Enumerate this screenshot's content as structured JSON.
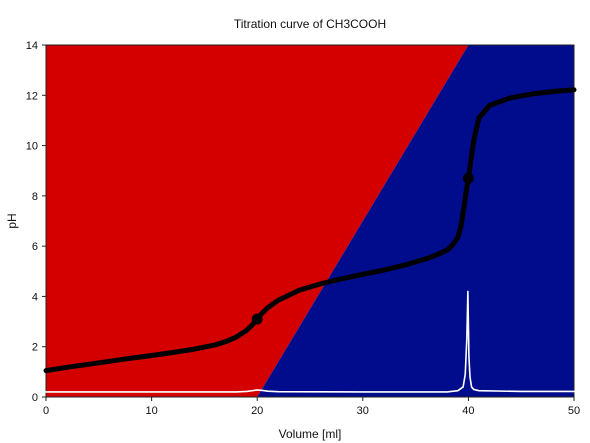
{
  "chart_data": {
    "type": "line",
    "title": "Titration curve of CH3COOH",
    "xlabel": "Volume [ml]",
    "ylabel": "pH",
    "xlim": [
      0,
      50
    ],
    "ylim": [
      0,
      14
    ],
    "xticks": [
      0,
      10,
      20,
      30,
      40,
      50
    ],
    "yticks": [
      0,
      2,
      4,
      6,
      8,
      10,
      12,
      14
    ],
    "grid": false,
    "legend": "none",
    "regions": {
      "boundary_line": [
        [
          20,
          0
        ],
        [
          40,
          14
        ]
      ],
      "left_color": "#d40000",
      "right_color": "#000c8c"
    },
    "series": [
      {
        "color": "#000000",
        "x": [
          0,
          2,
          4,
          6,
          8,
          10,
          12,
          14,
          16,
          17,
          18,
          19,
          19.5,
          20,
          20.5,
          21,
          22,
          24,
          26,
          28,
          30,
          32,
          34,
          36,
          37,
          38,
          38.5,
          39,
          39.3,
          39.6,
          39.8,
          40,
          40.2,
          40.5,
          41,
          42,
          44,
          46,
          48,
          50
        ],
        "y": [
          1.05,
          1.18,
          1.3,
          1.42,
          1.54,
          1.65,
          1.77,
          1.9,
          2.07,
          2.2,
          2.38,
          2.65,
          2.85,
          3.1,
          3.35,
          3.55,
          3.85,
          4.25,
          4.5,
          4.7,
          4.88,
          5.05,
          5.25,
          5.5,
          5.65,
          5.85,
          6.05,
          6.35,
          6.8,
          7.6,
          8.2,
          8.7,
          9.3,
          10.2,
          11.1,
          11.6,
          11.9,
          12.05,
          12.15,
          12.22
        ]
      },
      {
        "color": "#ffffff",
        "x": [
          0,
          10,
          18,
          19,
          20,
          20.5,
          21,
          22,
          30,
          38,
          39,
          39.5,
          39.7,
          39.85,
          39.95,
          40,
          40.05,
          40.15,
          40.3,
          40.5,
          41,
          45,
          50
        ],
        "y": [
          0.2,
          0.2,
          0.2,
          0.22,
          0.28,
          0.26,
          0.23,
          0.21,
          0.2,
          0.2,
          0.25,
          0.4,
          0.9,
          2.3,
          4.2,
          2.9,
          1.6,
          0.8,
          0.4,
          0.3,
          0.25,
          0.22,
          0.22
        ]
      }
    ],
    "markers": [
      {
        "x": 20,
        "y": 3.1
      },
      {
        "x": 40,
        "y": 8.7
      }
    ]
  }
}
